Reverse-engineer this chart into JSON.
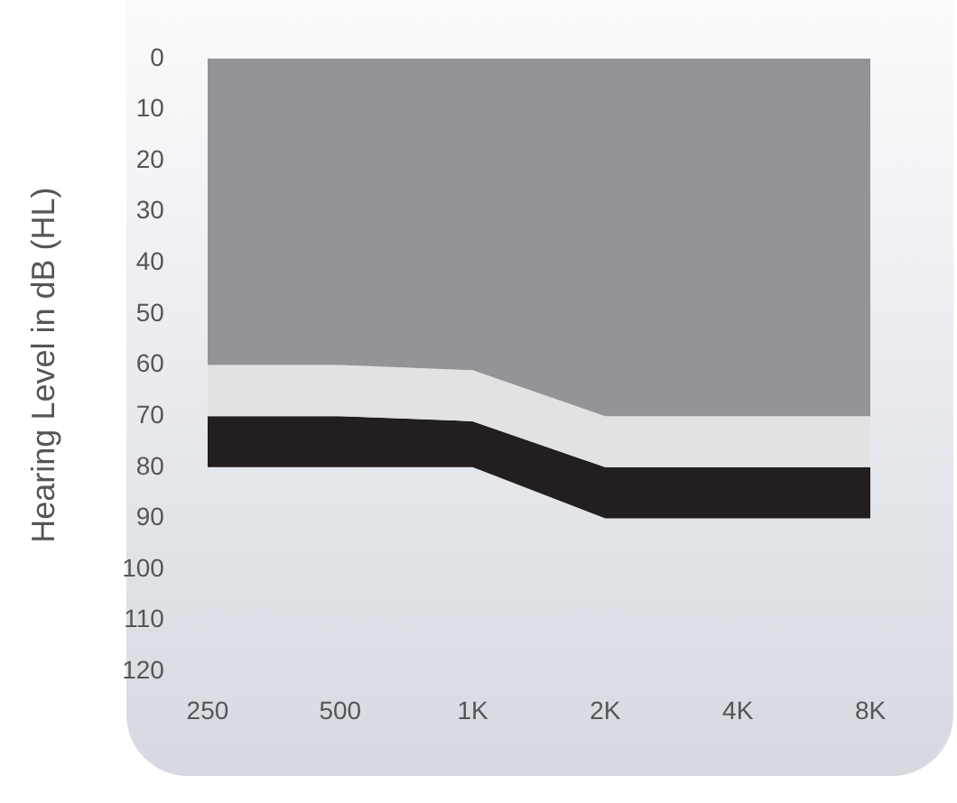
{
  "chart_data": {
    "type": "area",
    "ylabel": "Hearing Level in dB (HL)",
    "categories": [
      "250",
      "500",
      "1K",
      "2K",
      "4K",
      "8K"
    ],
    "stacked": true,
    "series": [
      {
        "color": "#939498",
        "values": [
          60,
          60,
          61,
          70,
          70,
          70
        ]
      },
      {
        "color": "#e2e2e2",
        "values": [
          10,
          10,
          10,
          10,
          10,
          10
        ]
      },
      {
        "color": "#231f20",
        "values": [
          10,
          10,
          9,
          10,
          10,
          10
        ]
      }
    ],
    "ylim": [
      120,
      0
    ],
    "yticks": [
      0,
      10,
      20,
      30,
      40,
      50,
      60,
      70,
      80,
      90,
      100,
      110,
      120
    ],
    "grid": false,
    "legend": false
  }
}
